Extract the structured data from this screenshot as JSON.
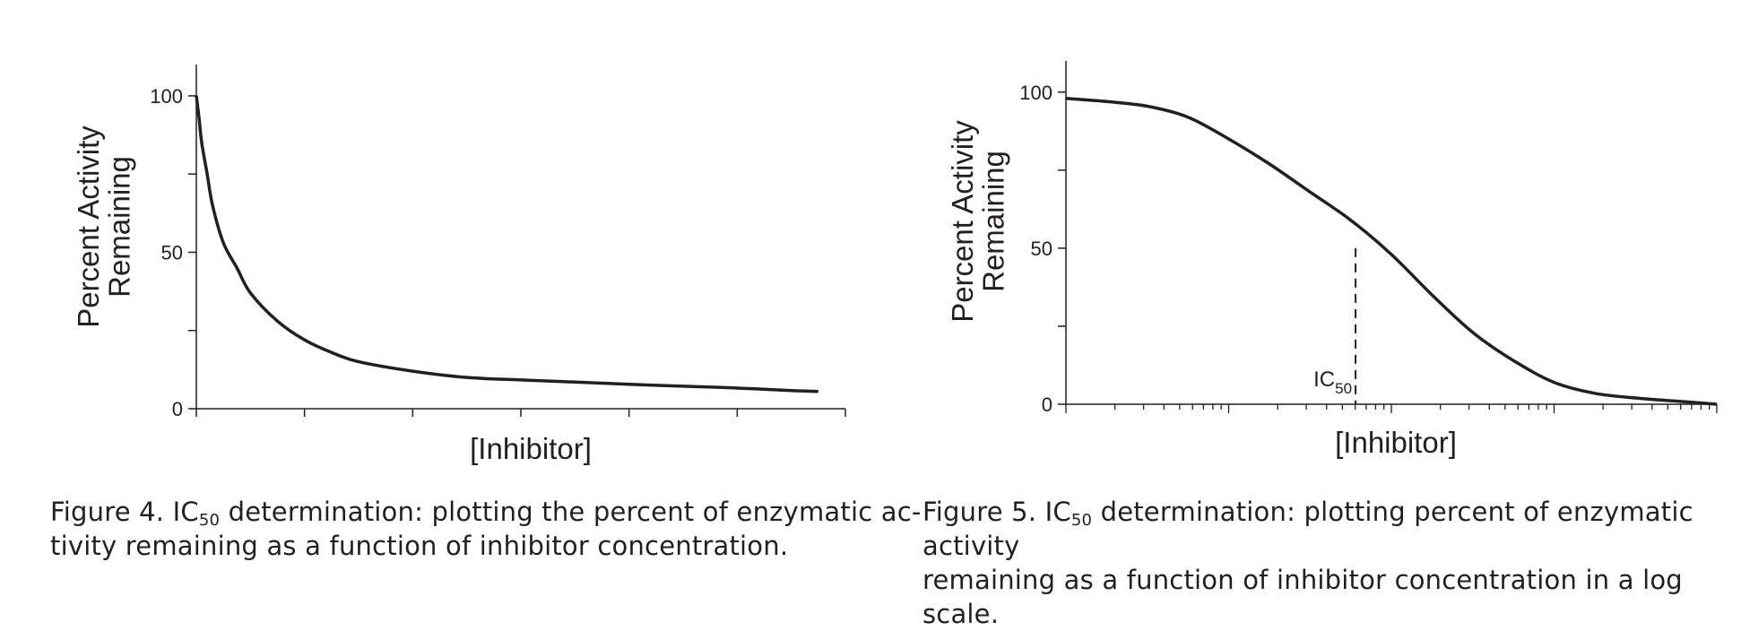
{
  "chart_data": [
    {
      "type": "line",
      "ylabel": "Percent Activity Remaining",
      "xlabel": "[Inhibitor]",
      "yticks": [
        "0",
        "50",
        "100"
      ],
      "ylim": [
        0,
        110
      ],
      "xlim": [
        0,
        12
      ],
      "x_scale": "linear",
      "x": [
        0,
        0.05,
        0.1,
        0.2,
        0.3,
        0.5,
        0.75,
        1.0,
        1.5,
        2.0,
        2.5,
        3.0,
        4.0,
        5.0,
        6.0,
        7.0,
        8.0,
        9.0,
        10.0,
        11.0,
        11.5
      ],
      "y": [
        100,
        93,
        85,
        75,
        65,
        53,
        45,
        37,
        28,
        22,
        18,
        15,
        12,
        10,
        9.2,
        8.5,
        7.8,
        7.2,
        6.6,
        5.8,
        5.5
      ],
      "caption": {
        "prefix": "Figure 4. IC",
        "sub": "50",
        "line1_rest": " determination: plotting the percent of enzymatic ac-",
        "line2": "tivity remaining as a function of inhibitor concentration."
      }
    },
    {
      "type": "line",
      "ylabel": "Percent Activity Remaining",
      "xlabel": "[Inhibitor]",
      "yticks": [
        "0",
        "50",
        "100"
      ],
      "ylim": [
        0,
        110
      ],
      "x_scale": "log",
      "xlim_decades": [
        0,
        4
      ],
      "x_decade": [
        0,
        0.25,
        0.5,
        0.75,
        1.0,
        1.25,
        1.5,
        1.75,
        2.0,
        2.25,
        2.5,
        2.75,
        3.0,
        3.25,
        3.5,
        3.75,
        4.0
      ],
      "y": [
        98,
        97,
        95.5,
        92,
        85,
        77,
        68,
        59,
        48,
        35,
        23,
        14,
        7,
        3.5,
        2,
        1,
        0
      ],
      "annotation": {
        "text": "IC",
        "sub": "50",
        "x_decade": 1.78,
        "y": 50
      },
      "caption": {
        "prefix": "Figure 5. IC",
        "sub": "50",
        "line1_rest": " determination: plotting percent of enzymatic activity",
        "line2": "remaining as a function of inhibitor concentration in a log scale."
      }
    }
  ]
}
